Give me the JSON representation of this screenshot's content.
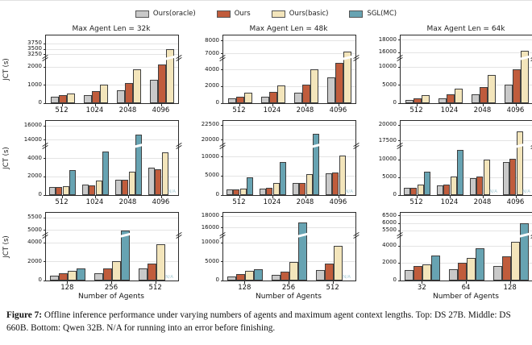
{
  "legend": {
    "items": [
      {
        "label": "Ours(oracle)",
        "color": "#c9c9c9"
      },
      {
        "label": "Ours",
        "color": "#c05c3c"
      },
      {
        "label": "Ours(basic)",
        "color": "#f3e5bb"
      },
      {
        "label": "SGL(MC)",
        "color": "#67a3b2"
      }
    ]
  },
  "figure": {
    "ylabel": "JCT (s)",
    "xlabel": "Number of Agents",
    "na_label": "N/A"
  },
  "caption": {
    "label": "Figure 7:",
    "text": " Offline inference performance under varying numbers of agents and maximum agent context lengths. Top: DS 27B. Middle: DS 660B. Bottom: Qwen 32B. N/A for running into an error before finishing."
  },
  "chart_data": [
    {
      "id": "ds27b-32k",
      "type": "bar",
      "title": "Max Agent Len = 32k",
      "categories": [
        "512",
        "1024",
        "2048",
        "4096"
      ],
      "series": [
        {
          "name": "Ours(oracle)",
          "values": [
            380,
            460,
            730,
            1310
          ]
        },
        {
          "name": "Ours",
          "values": [
            430,
            690,
            1130,
            2160
          ]
        },
        {
          "name": "Ours(basic)",
          "values": [
            530,
            1010,
            1890,
            3500
          ]
        }
      ],
      "axis_break": {
        "lower_ticks": [
          0,
          1000,
          2000
        ],
        "lower_max": 2400,
        "upper_ticks": [
          3250,
          3500,
          3750
        ],
        "upper_min": 3150,
        "upper_max": 4150
      },
      "ylabel": "JCT (s)",
      "xlabel": "",
      "grid": true
    },
    {
      "id": "ds27b-48k",
      "type": "bar",
      "title": "Max Agent Len = 48k",
      "categories": [
        "512",
        "1024",
        "2048",
        "4096"
      ],
      "series": [
        {
          "name": "Ours(oracle)",
          "values": [
            600,
            750,
            1250,
            3100
          ]
        },
        {
          "name": "Ours",
          "values": [
            800,
            1350,
            2250,
            4800
          ]
        },
        {
          "name": "Ours(basic)",
          "values": [
            1250,
            2150,
            4050,
            7200
          ]
        }
      ],
      "axis_break": {
        "lower_ticks": [
          0,
          2000,
          4000
        ],
        "lower_max": 5200,
        "upper_ticks": [
          7000,
          8000
        ],
        "upper_min": 6800,
        "upper_max": 8400
      },
      "ylabel": "",
      "xlabel": "",
      "grid": true
    },
    {
      "id": "ds27b-64k",
      "type": "bar",
      "title": "Max Agent Len = 64k",
      "categories": [
        "512",
        "1024",
        "2048",
        "4096"
      ],
      "series": [
        {
          "name": "Ours(oracle)",
          "values": [
            800,
            1400,
            2400,
            5200
          ]
        },
        {
          "name": "Ours",
          "values": [
            1300,
            2400,
            4400,
            9400
          ]
        },
        {
          "name": "Ours(basic)",
          "values": [
            2200,
            4000,
            7800,
            16300
          ]
        }
      ],
      "axis_break": {
        "lower_ticks": [
          0,
          5000,
          10000
        ],
        "lower_max": 12000,
        "upper_ticks": [
          16000,
          18000
        ],
        "upper_min": 15400,
        "upper_max": 18700
      },
      "ylabel": "",
      "xlabel": "",
      "grid": true
    },
    {
      "id": "ds660b-32k",
      "type": "bar",
      "title": "",
      "categories": [
        "512",
        "1024",
        "2048",
        "4096"
      ],
      "series": [
        {
          "name": "Ours(oracle)",
          "values": [
            900,
            1150,
            1700,
            3000
          ]
        },
        {
          "name": "Ours",
          "values": [
            870,
            1100,
            1650,
            2850
          ]
        },
        {
          "name": "Ours(basic)",
          "values": [
            980,
            1550,
            2550,
            4700
          ]
        },
        {
          "name": "SGL(MC)",
          "values": [
            2700,
            4800,
            14800,
            null
          ]
        }
      ],
      "axis_break": {
        "lower_ticks": [
          0,
          2000,
          4000
        ],
        "lower_max": 5200,
        "upper_ticks": [
          14000,
          16000
        ],
        "upper_min": 13400,
        "upper_max": 16700
      },
      "ylabel": "JCT (s)",
      "xlabel": "",
      "grid": true
    },
    {
      "id": "ds660b-48k",
      "type": "bar",
      "title": "",
      "categories": [
        "512",
        "1024",
        "2048",
        "4096"
      ],
      "series": [
        {
          "name": "Ours(oracle)",
          "values": [
            1400,
            1800,
            3100,
            5700
          ]
        },
        {
          "name": "Ours",
          "values": [
            1500,
            1900,
            3200,
            5900
          ]
        },
        {
          "name": "Ours(basic)",
          "values": [
            1800,
            3100,
            5500,
            10500
          ]
        },
        {
          "name": "SGL(MC)",
          "values": [
            4700,
            8700,
            21000,
            null
          ]
        }
      ],
      "axis_break": {
        "lower_ticks": [
          0,
          5000,
          10000
        ],
        "lower_max": 12500,
        "upper_ticks": [
          20000,
          22500
        ],
        "upper_min": 19300,
        "upper_max": 23200
      },
      "ylabel": "",
      "xlabel": "",
      "grid": true
    },
    {
      "id": "ds660b-64k",
      "type": "bar",
      "title": "",
      "categories": [
        "512",
        "1024",
        "2048",
        "4096"
      ],
      "series": [
        {
          "name": "Ours(oracle)",
          "values": [
            2000,
            2700,
            4900,
            9300
          ]
        },
        {
          "name": "Ours",
          "values": [
            2100,
            2900,
            5300,
            10300
          ]
        },
        {
          "name": "Ours(basic)",
          "values": [
            2900,
            5300,
            10000,
            19000
          ]
        },
        {
          "name": "SGL(MC)",
          "values": [
            6700,
            12800,
            null,
            null
          ]
        }
      ],
      "axis_break": {
        "lower_ticks": [
          0,
          5000,
          10000
        ],
        "lower_max": 13500,
        "upper_ticks": [
          17500,
          20000
        ],
        "upper_min": 16900,
        "upper_max": 20700
      },
      "ylabel": "",
      "xlabel": "",
      "grid": true
    },
    {
      "id": "qwen32b-32k",
      "type": "bar",
      "title": "",
      "categories": [
        "128",
        "256",
        "512"
      ],
      "series": [
        {
          "name": "Ours(oracle)",
          "values": [
            550,
            800,
            1250
          ]
        },
        {
          "name": "Ours",
          "values": [
            750,
            1250,
            1800
          ]
        },
        {
          "name": "Ours(basic)",
          "values": [
            1050,
            2050,
            3850
          ]
        },
        {
          "name": "SGL(MC)",
          "values": [
            1250,
            5000,
            null
          ]
        }
      ],
      "axis_break": {
        "lower_ticks": [
          0,
          2000,
          4000
        ],
        "lower_max": 4600,
        "upper_ticks": [
          5000,
          5500
        ],
        "upper_min": 4850,
        "upper_max": 5700
      },
      "ylabel": "JCT (s)",
      "xlabel": "Number of Agents",
      "grid": true
    },
    {
      "id": "qwen32b-48k",
      "type": "bar",
      "title": "",
      "categories": [
        "128",
        "256",
        "512"
      ],
      "series": [
        {
          "name": "Ours(oracle)",
          "values": [
            1100,
            1600,
            2700
          ]
        },
        {
          "name": "Ours",
          "values": [
            1700,
            2400,
            4500
          ]
        },
        {
          "name": "Ours(basic)",
          "values": [
            2600,
            4900,
            9200
          ]
        },
        {
          "name": "SGL(MC)",
          "values": [
            3100,
            17000,
            null
          ]
        }
      ],
      "axis_break": {
        "lower_ticks": [
          0,
          5000,
          10000
        ],
        "lower_max": 11500,
        "upper_ticks": [
          16000,
          18000
        ],
        "upper_min": 15000,
        "upper_max": 18600
      },
      "ylabel": "",
      "xlabel": "Number of Agents",
      "grid": true
    },
    {
      "id": "qwen32b-64k",
      "type": "bar",
      "title": "",
      "categories": [
        "32",
        "64",
        "128"
      ],
      "series": [
        {
          "name": "Ours(oracle)",
          "values": [
            1250,
            1350,
            1650
          ]
        },
        {
          "name": "Ours",
          "values": [
            1700,
            2050,
            2800
          ]
        },
        {
          "name": "Ours(basic)",
          "values": [
            1900,
            2650,
            4500
          ]
        },
        {
          "name": "SGL(MC)",
          "values": [
            2900,
            3700,
            6000
          ]
        }
      ],
      "axis_break": {
        "lower_ticks": [
          0,
          2000,
          4000
        ],
        "lower_max": 5000,
        "upper_ticks": [
          5500,
          6000,
          6500
        ],
        "upper_min": 5300,
        "upper_max": 6700
      },
      "ylabel": "",
      "xlabel": "Number of Agents",
      "grid": true
    }
  ]
}
